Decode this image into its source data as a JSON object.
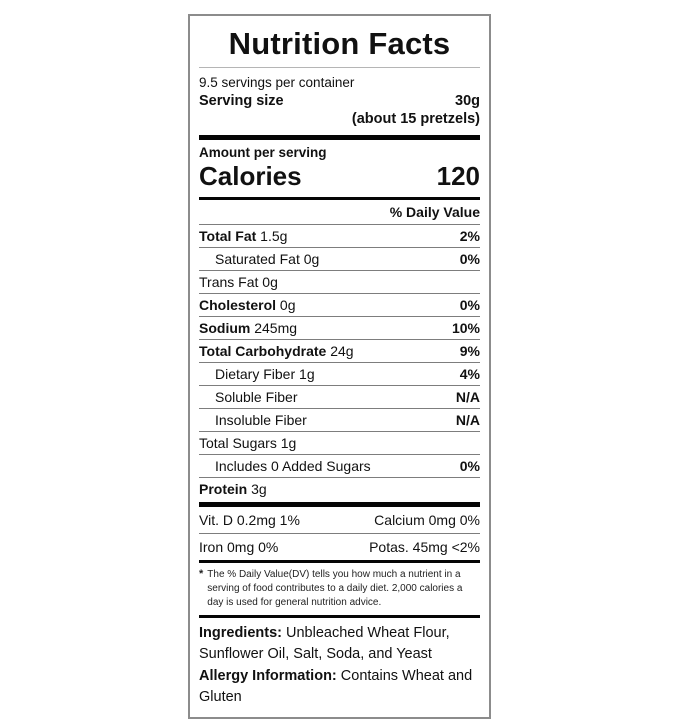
{
  "label": {
    "title": "Nutrition Facts",
    "servings_per_container": "9.5 servings per container",
    "serving_size_label": "Serving size",
    "serving_size_value": "30g",
    "serving_size_note": "(about 15 pretzels)",
    "amount_per_serving": "Amount per serving",
    "calories_label": "Calories",
    "calories_value": "120",
    "daily_value_header": "% Daily Value",
    "rows": [
      {
        "name": "Total Fat",
        "amount": " 1.5g",
        "dv": "2%"
      },
      {
        "name": "Saturated Fat",
        "amount": " 0g",
        "dv": "0%"
      },
      {
        "name": "Trans Fat",
        "amount": " 0g",
        "dv": ""
      },
      {
        "name": "Cholesterol",
        "amount": " 0g",
        "dv": "0%"
      },
      {
        "name": "Sodium",
        "amount": " 245mg",
        "dv": "10%"
      },
      {
        "name": "Total Carbohydrate",
        "amount": " 24g",
        "dv": "9%"
      },
      {
        "name": "Dietary Fiber",
        "amount": " 1g",
        "dv": "4%"
      },
      {
        "name": "Soluble Fiber",
        "amount": "",
        "dv": "N/A"
      },
      {
        "name": "Insoluble Fiber",
        "amount": "",
        "dv": "N/A"
      },
      {
        "name": "Total Sugars",
        "amount": " 1g",
        "dv": ""
      },
      {
        "name": "Includes 0 Added Sugars",
        "amount": "",
        "dv": "0%"
      },
      {
        "name": "Protein",
        "amount": " 3g",
        "dv": ""
      }
    ],
    "micronutrients": [
      {
        "left": "Vit. D 0.2mg 1%",
        "right": "Calcium 0mg 0%"
      },
      {
        "left": "Iron 0mg 0%",
        "right": "Potas. 45mg <2%"
      }
    ],
    "footnote_marker": "*",
    "footnote": "The % Daily Value(DV) tells you how much a nutrient in a serving of food contributes to a daily diet. 2,000 calories a day is used for general nutrition advice.",
    "ingredients_label": "Ingredients:",
    "ingredients_text": " Unbleached Wheat Flour, Sunflower Oil, Salt, Soda, and Yeast",
    "allergy_label": "Allergy Information:",
    "allergy_text": " Contains Wheat and Gluten"
  },
  "colors": {
    "text": "#111111",
    "heavy_rule": "#050505",
    "thin_rule": "#7d7d7d",
    "outer_border": "#8c8c8c",
    "background": "#ffffff"
  }
}
